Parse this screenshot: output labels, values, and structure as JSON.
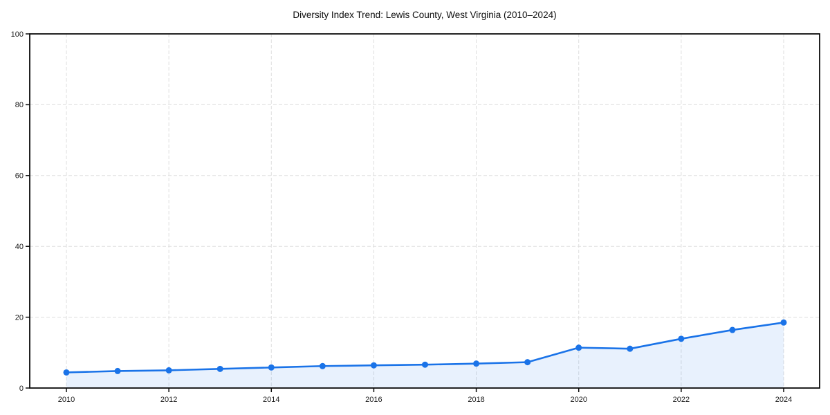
{
  "title": "Diversity Index Trend: Lewis County, West Virginia (2010–2024)",
  "chart_data": {
    "type": "area",
    "title": "Diversity Index Trend: Lewis County, West Virginia (2010–2024)",
    "xlabel": "",
    "ylabel": "",
    "x": [
      2010,
      2011,
      2012,
      2013,
      2014,
      2015,
      2016,
      2017,
      2018,
      2019,
      2020,
      2021,
      2022,
      2023,
      2024
    ],
    "series": [
      {
        "name": "Diversity Index",
        "values": [
          4.4,
          4.8,
          5.0,
          5.4,
          5.8,
          6.2,
          6.4,
          6.6,
          6.9,
          7.3,
          11.4,
          11.1,
          13.9,
          16.4,
          18.5
        ]
      }
    ],
    "ylim": [
      0,
      100
    ],
    "yticks": [
      0,
      20,
      40,
      60,
      80,
      100
    ],
    "xticks": [
      2010,
      2012,
      2014,
      2016,
      2018,
      2020,
      2022,
      2024
    ],
    "grid": true,
    "grid_style": "dashed",
    "legend": "none",
    "marker": "circle",
    "colors": {
      "line": "#1a73e8",
      "marker": "#1a73e8",
      "area_fill": "rgba(26,115,232,0.10)",
      "grid": "#dedede",
      "spine": "#0a0a0a",
      "tick_label": "#1a1a1a",
      "background": "#ffffff"
    }
  }
}
